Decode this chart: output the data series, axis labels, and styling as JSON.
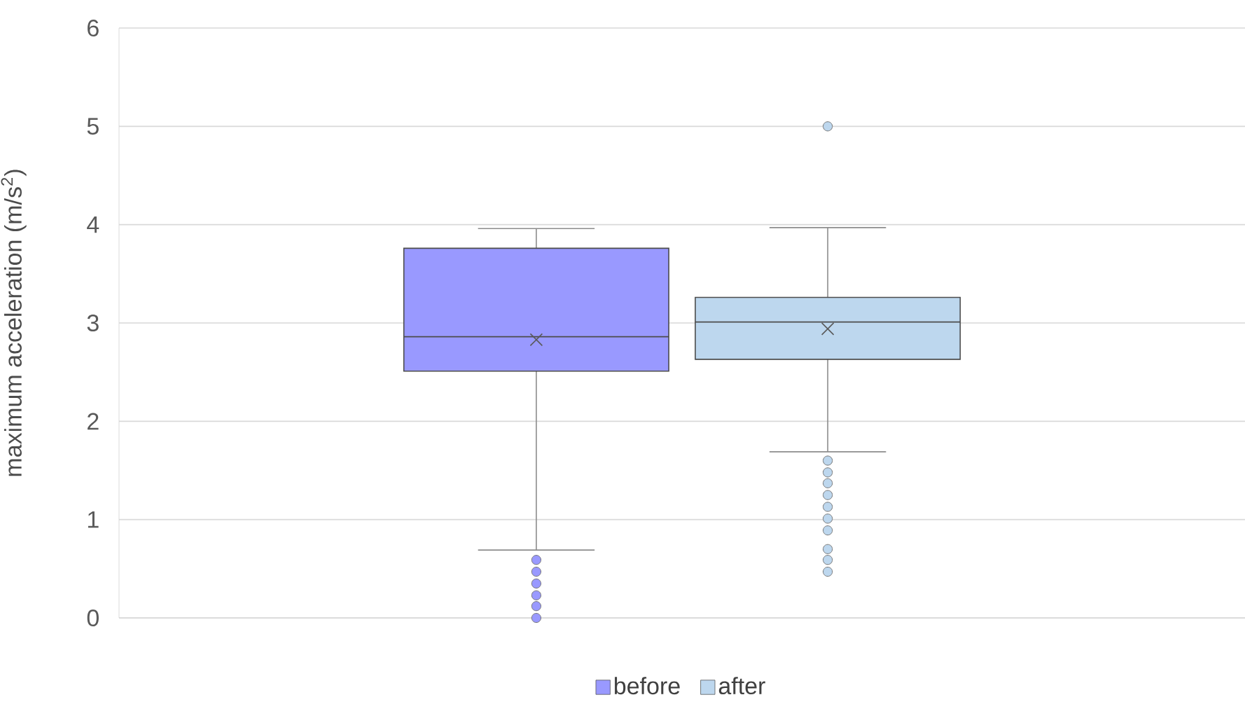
{
  "chart_data": {
    "type": "box",
    "ylabel": "maximum acceleration (m/s$^{2}$)",
    "categories": [
      null
    ],
    "ylim": [
      0,
      6
    ],
    "yticks": [
      0,
      1,
      2,
      3,
      4,
      5,
      6
    ],
    "grid": "y",
    "legend": "bottom",
    "series": [
      {
        "name": "before",
        "color": "#9999ff",
        "boxes": [
          {
            "low": 0.69,
            "q1": 2.51,
            "median": 2.86,
            "q3": 3.76,
            "high": 3.96,
            "mean": 2.83,
            "outliers": [
              0.59,
              0.47,
              0.35,
              0.23,
              0.12,
              0.0
            ]
          }
        ]
      },
      {
        "name": "after",
        "color": "#bdd7ee",
        "boxes": [
          {
            "low": 1.69,
            "q1": 2.63,
            "median": 3.01,
            "q3": 3.26,
            "high": 3.97,
            "mean": 2.94,
            "outliers": [
              5.0,
              1.6,
              1.48,
              1.37,
              1.25,
              1.13,
              1.01,
              0.89,
              0.7,
              0.59,
              0.47
            ]
          }
        ]
      }
    ]
  }
}
